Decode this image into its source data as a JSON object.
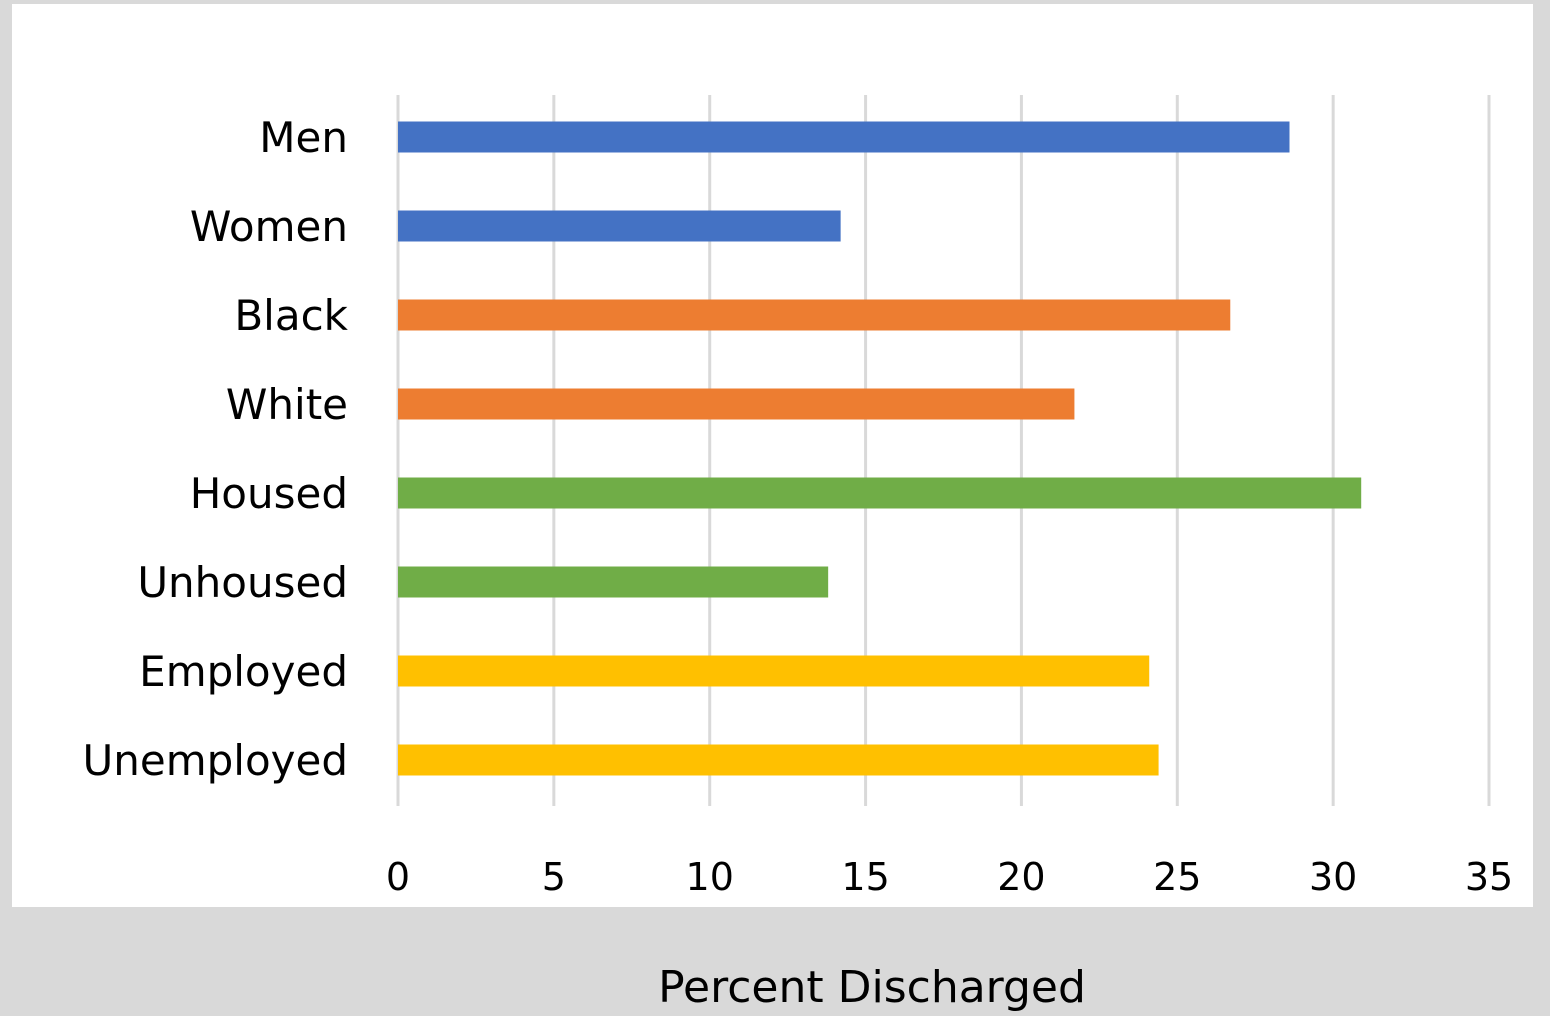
{
  "chart_data": {
    "type": "bar",
    "orientation": "horizontal",
    "categories": [
      "Men",
      "Women",
      "Black",
      "White",
      "Housed",
      "Unhoused",
      "Employed",
      "Unemployed"
    ],
    "values": [
      28.6,
      14.2,
      26.7,
      21.7,
      30.9,
      13.8,
      24.1,
      24.4
    ],
    "colors": [
      "#4472c4",
      "#4472c4",
      "#ed7d31",
      "#ed7d31",
      "#70ad47",
      "#70ad47",
      "#ffc000",
      "#ffc000"
    ],
    "xlabel": "Percent Discharged",
    "ylabel": "",
    "xlim": [
      0,
      35
    ],
    "xticks": [
      0,
      5,
      10,
      15,
      20,
      25,
      30,
      35
    ],
    "grid": true,
    "legend": "none"
  }
}
